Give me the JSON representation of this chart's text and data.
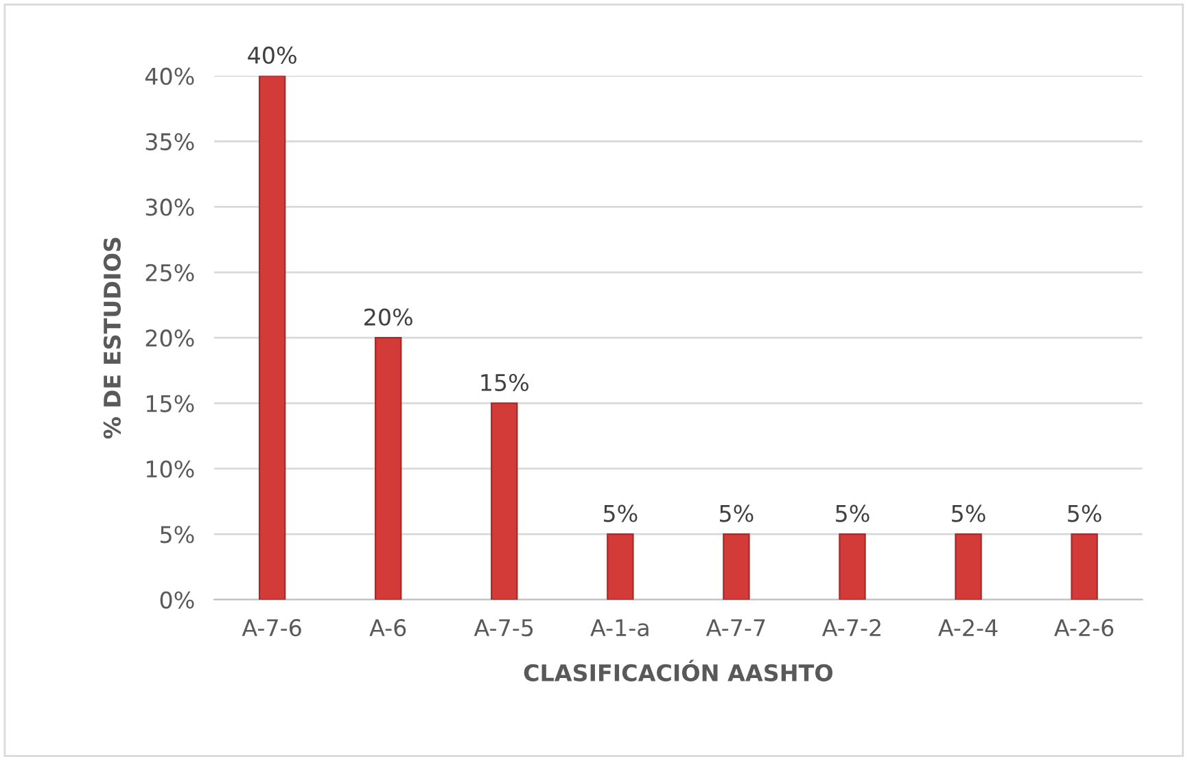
{
  "chart_data": {
    "type": "bar",
    "xlabel": "CLASIFICACIÓN AASHTO",
    "ylabel": "% DE ESTUDIOS",
    "categories": [
      "A-7-6",
      "A-6",
      "A-7-5",
      "A-1-a",
      "A-7-7",
      "A-7-2",
      "A-2-4",
      "A-2-6"
    ],
    "values": [
      40,
      20,
      15,
      5,
      5,
      5,
      5,
      5
    ],
    "value_labels": [
      "40%",
      "20%",
      "15%",
      "5%",
      "5%",
      "5%",
      "5%",
      "5%"
    ],
    "color": "#d33b39",
    "ylim": [
      0,
      40
    ],
    "yticks": [
      {
        "value": 0,
        "label": "0%"
      },
      {
        "value": 5,
        "label": "5%"
      },
      {
        "value": 10,
        "label": "10%"
      },
      {
        "value": 15,
        "label": "15%"
      },
      {
        "value": 20,
        "label": "20%"
      },
      {
        "value": 25,
        "label": "25%"
      },
      {
        "value": 30,
        "label": "30%"
      },
      {
        "value": 35,
        "label": "35%"
      },
      {
        "value": 40,
        "label": "40%"
      }
    ],
    "grid": "y",
    "legend": false
  }
}
